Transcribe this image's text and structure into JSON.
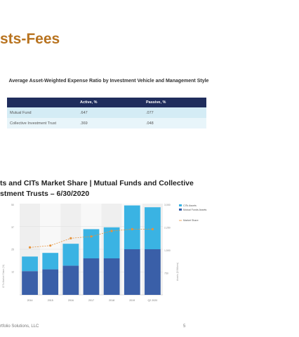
{
  "slide": {
    "title": "sts-Fees",
    "footer": "rtfolio Solutions, LLC",
    "page_number": "5"
  },
  "fee_table": {
    "caption": "Average Asset-Weighted Expense Ratio by Investment Vehicle and Management Style",
    "headers": [
      "",
      "Active, %",
      "Passive, %"
    ],
    "rows": [
      {
        "label": "Mutual Fund",
        "active": ".647",
        "passive": ".077"
      },
      {
        "label": "Collective Investment Trust",
        "active": ".369",
        "passive": ".048"
      }
    ]
  },
  "chart_title": {
    "line1": "ts and CITs Market Share | Mutual Funds and Collective",
    "line2": "stment Trusts – 6/30/2020"
  },
  "chart_data": {
    "type": "bar",
    "stacked": true,
    "categories": [
      "2014",
      "2015",
      "2016",
      "2017",
      "2018",
      "2019",
      "Q2 2020"
    ],
    "series": [
      {
        "name": "Mutual Funds Assets",
        "values": [
          1.3,
          1.4,
          1.6,
          2.0,
          2.0,
          2.5,
          2.5
        ],
        "color": "#3a5fa8"
      },
      {
        "name": "CITs Assets",
        "values": [
          0.8,
          0.9,
          1.2,
          1.6,
          1.7,
          2.4,
          2.3
        ],
        "color": "#3ab3e3"
      },
      {
        "name": "Market Share",
        "values": [
          26,
          27,
          31,
          32,
          35,
          36,
          36
        ],
        "color": "#e6923a",
        "axis": "left",
        "style": "dashed-line"
      }
    ],
    "left_axis": {
      "ticks": [
        "50",
        "37",
        "25",
        "12"
      ],
      "label": "CITs Market Share (%)",
      "range": [
        0,
        50
      ]
    },
    "right_axis": {
      "ticks": [
        "3,000",
        "2,250",
        "1,500",
        "750"
      ],
      "label": "Assets ($ Billions)",
      "range": [
        0,
        5
      ]
    },
    "legend": [
      "CITs Assets",
      "Mutual Funds Assets",
      "Market Share"
    ],
    "legend_position": "right",
    "grid": true
  }
}
